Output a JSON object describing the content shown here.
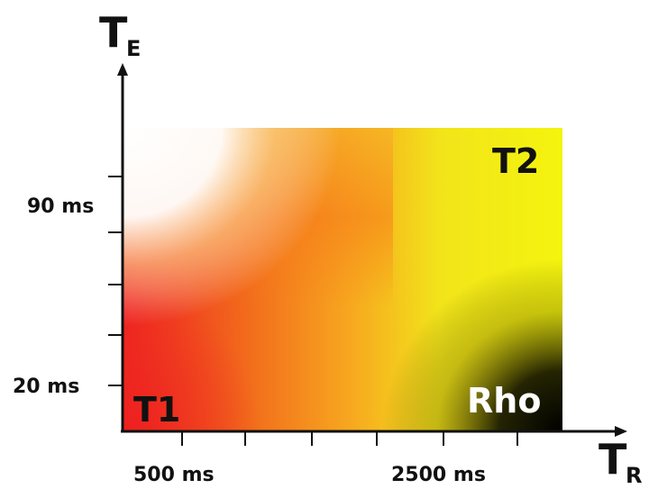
{
  "axes": {
    "y_title": "T",
    "y_subscript": "E",
    "x_title": "T",
    "x_subscript": "R",
    "y_ticks": [
      {
        "label": "90 ms"
      },
      {
        "label": "20 ms"
      }
    ],
    "x_ticks": [
      {
        "label": "500 ms"
      },
      {
        "label": "2500 ms"
      }
    ]
  },
  "regions": {
    "t1": "T1",
    "t2": "T2",
    "rho": "Rho"
  },
  "colors": {
    "t1_red": "#ee2222",
    "orange": "#f77a1a",
    "yellow": "#f3f30e",
    "rho_black": "#000000",
    "white": "#ffffff",
    "axis": "#111111"
  }
}
